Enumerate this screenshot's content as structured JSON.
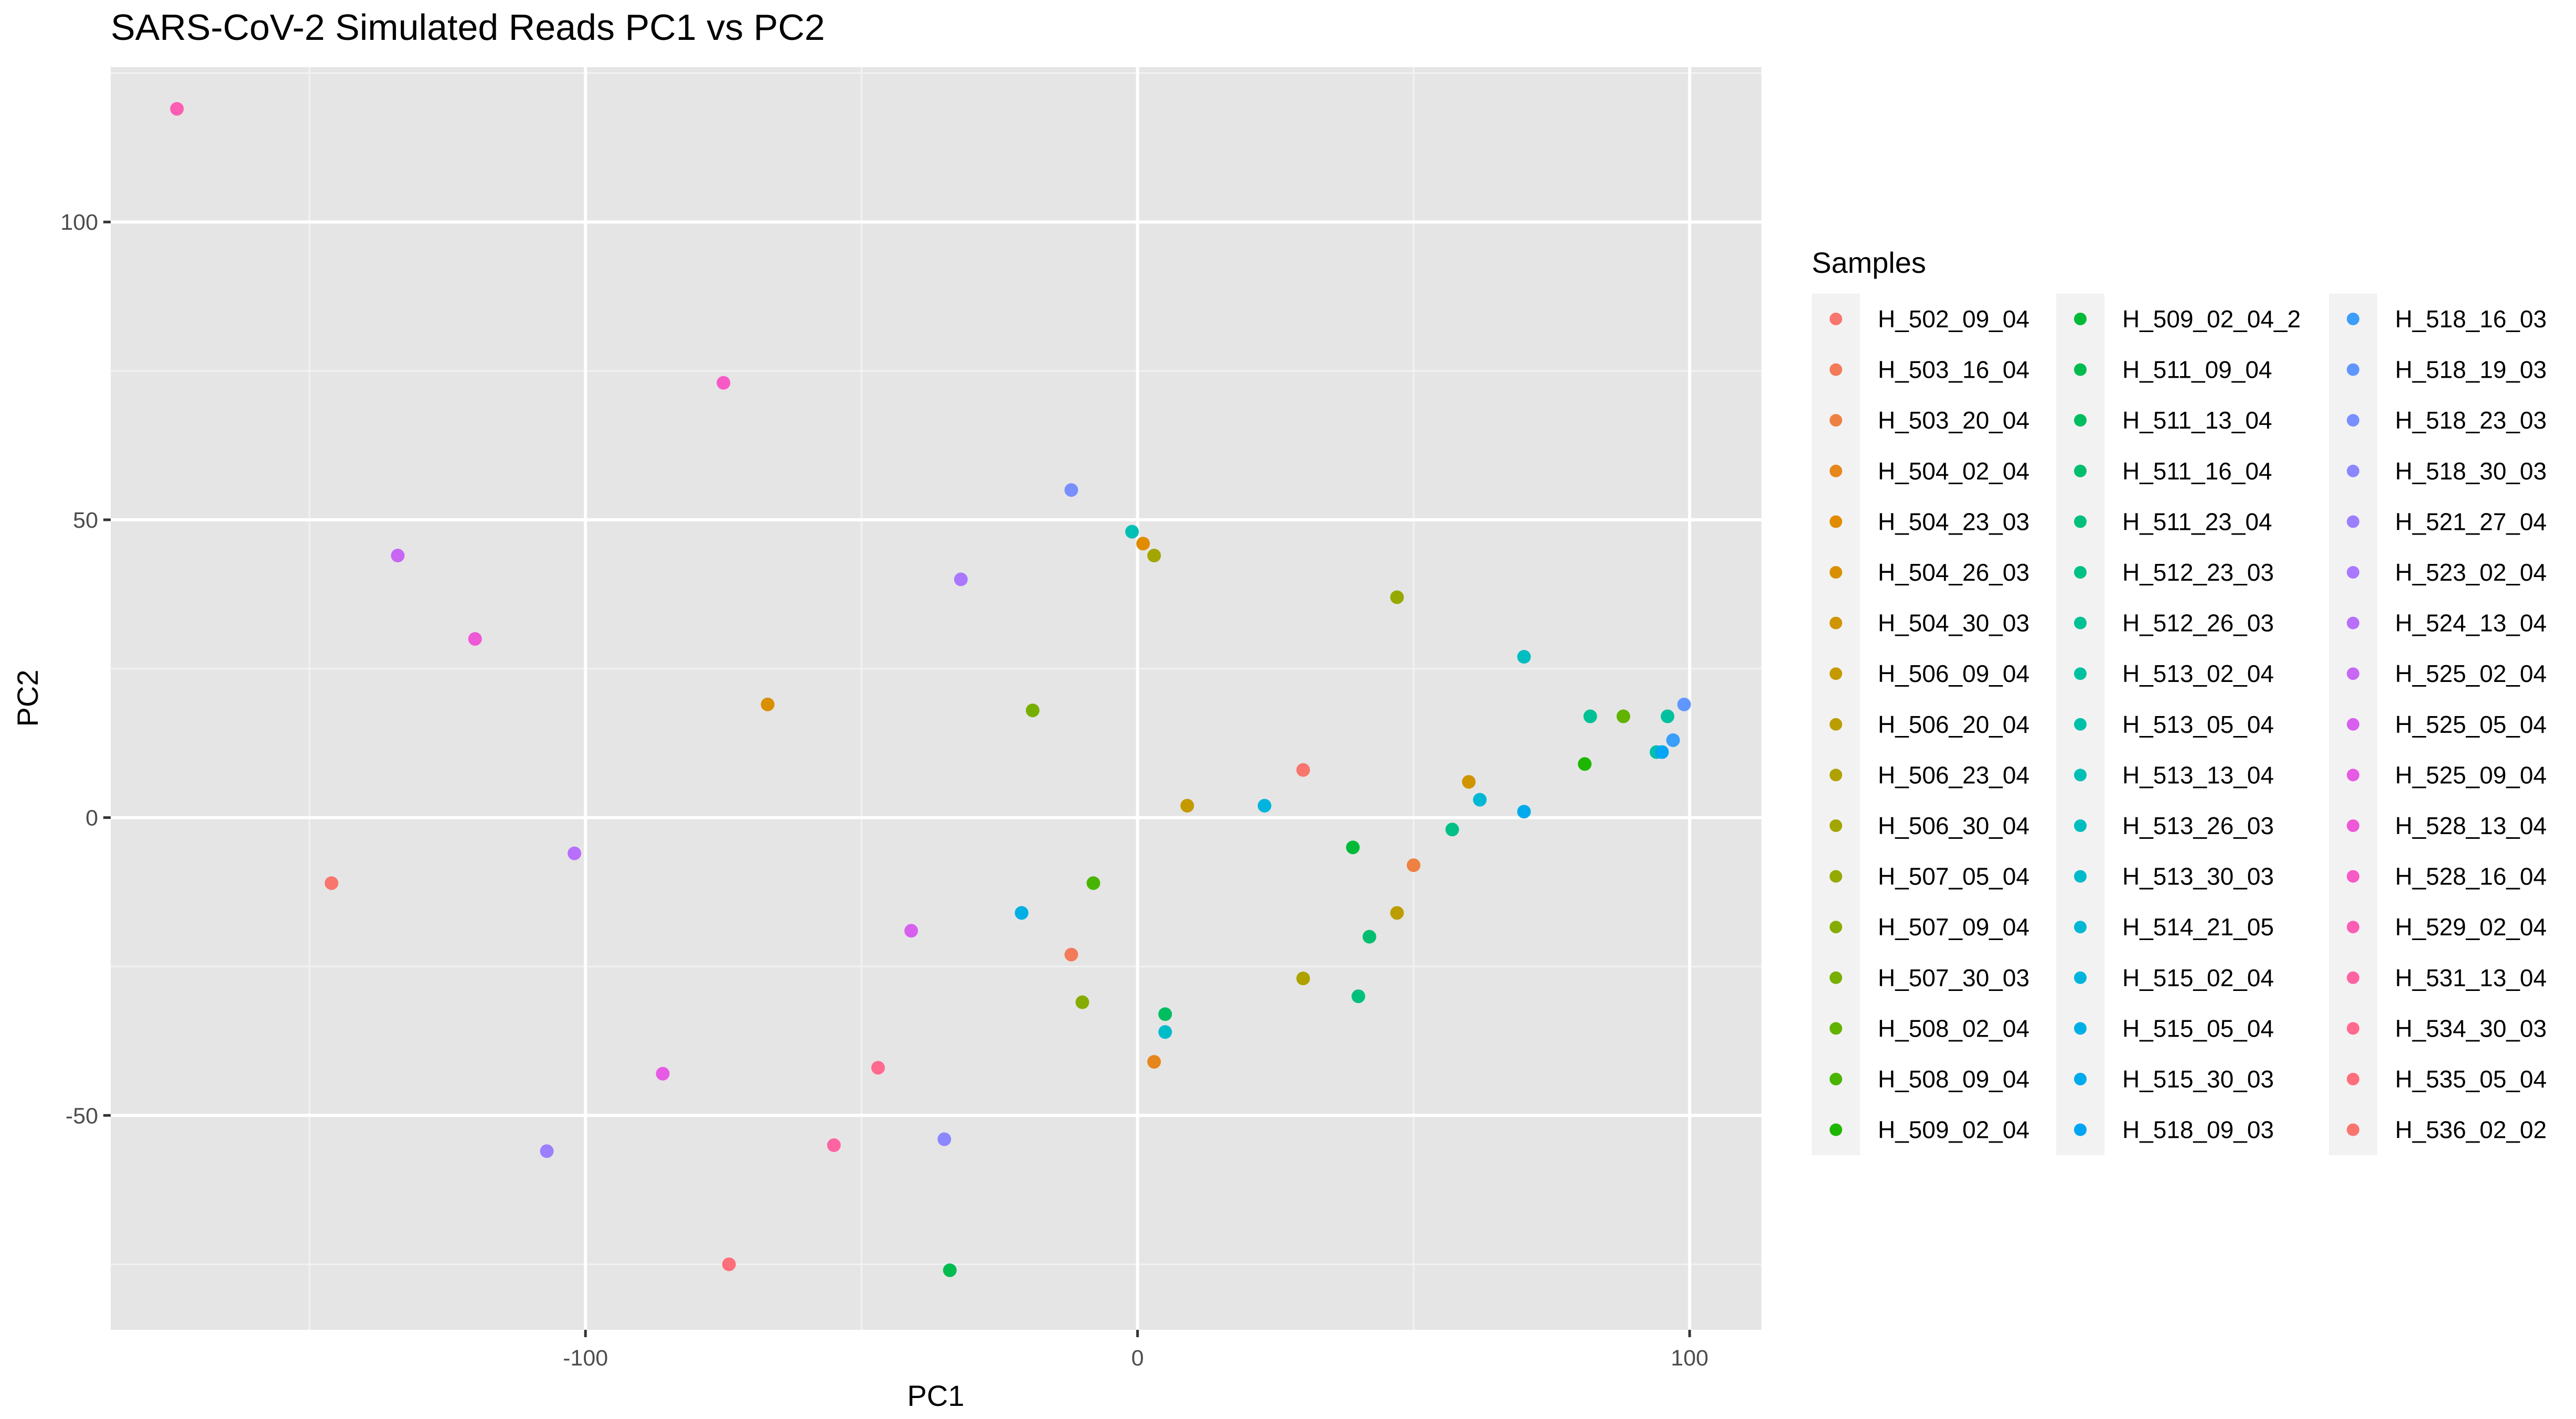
{
  "chart_data": {
    "type": "scatter",
    "title": "SARS-CoV-2 Simulated Reads PC1 vs PC2",
    "xlabel": "PC1",
    "ylabel": "PC2",
    "xlim": [
      -186,
      113
    ],
    "ylim": [
      -86,
      126
    ],
    "x_ticks": [
      -100,
      0,
      100
    ],
    "x_tick_labels": [
      "-100",
      "0",
      "100"
    ],
    "y_ticks": [
      -50,
      0,
      50,
      100
    ],
    "y_tick_labels": [
      "-50",
      "0",
      "50",
      "100"
    ],
    "grid": true,
    "legend": {
      "title": "Samples",
      "position": "right",
      "columns": 3
    },
    "series": [
      {
        "name": "H_502_09_04",
        "color": "#F8766D",
        "x": 30,
        "y": 8
      },
      {
        "name": "H_503_16_04",
        "color": "#F37B59",
        "x": -12,
        "y": -23
      },
      {
        "name": "H_503_20_04",
        "color": "#ED8141",
        "x": 50,
        "y": -8
      },
      {
        "name": "H_504_02_04",
        "color": "#E7861B",
        "x": 3,
        "y": -41
      },
      {
        "name": "H_504_23_03",
        "color": "#E08B00",
        "x": 1,
        "y": 46
      },
      {
        "name": "H_504_26_03",
        "color": "#D89000",
        "x": -67,
        "y": 19
      },
      {
        "name": "H_504_30_03",
        "color": "#CF9400",
        "x": 60,
        "y": 6
      },
      {
        "name": "H_506_09_04",
        "color": "#C59900",
        "x": 9,
        "y": 2
      },
      {
        "name": "H_506_20_04",
        "color": "#BB9D00",
        "x": 47,
        "y": -16
      },
      {
        "name": "H_506_23_04",
        "color": "#AFA100",
        "x": 30,
        "y": -27
      },
      {
        "name": "H_506_30_04",
        "color": "#A3A500",
        "x": 3,
        "y": 44
      },
      {
        "name": "H_507_05_04",
        "color": "#96A900",
        "x": 47,
        "y": 37
      },
      {
        "name": "H_507_09_04",
        "color": "#87AC00",
        "x": -10,
        "y": -31
      },
      {
        "name": "H_507_30_03",
        "color": "#76AF00",
        "x": -19,
        "y": 18
      },
      {
        "name": "H_508_02_04",
        "color": "#62B200",
        "x": 88,
        "y": 17
      },
      {
        "name": "H_508_09_04",
        "color": "#49B500",
        "x": -8,
        "y": -11
      },
      {
        "name": "H_509_02_04",
        "color": "#1DB700",
        "x": 81,
        "y": 9
      },
      {
        "name": "H_509_02_04_2",
        "color": "#00BA38",
        "x": 39,
        "y": -5
      },
      {
        "name": "H_511_09_04",
        "color": "#00BB4E",
        "x": -34,
        "y": -76
      },
      {
        "name": "H_511_13_04",
        "color": "#00BD5F",
        "x": 5,
        "y": -33
      },
      {
        "name": "H_511_16_04",
        "color": "#00BE6D",
        "x": 42,
        "y": -20
      },
      {
        "name": "H_511_23_04",
        "color": "#00C07B",
        "x": 40,
        "y": -30
      },
      {
        "name": "H_512_23_03",
        "color": "#00C087",
        "x": 57,
        "y": -2
      },
      {
        "name": "H_512_26_03",
        "color": "#00C193",
        "x": 82,
        "y": 17
      },
      {
        "name": "H_513_02_04",
        "color": "#00C19F",
        "x": 96,
        "y": 17
      },
      {
        "name": "H_513_05_04",
        "color": "#00C0AA",
        "x": 94,
        "y": 11
      },
      {
        "name": "H_513_13_04",
        "color": "#00BFB5",
        "x": -1,
        "y": 48
      },
      {
        "name": "H_513_26_03",
        "color": "#00BDC0",
        "x": 70,
        "y": 27
      },
      {
        "name": "H_513_30_03",
        "color": "#00BBCA",
        "x": 5,
        "y": -36
      },
      {
        "name": "H_514_21_05",
        "color": "#00B8D4",
        "x": 62,
        "y": 3
      },
      {
        "name": "H_515_02_04",
        "color": "#00B4DD",
        "x": 23,
        "y": 2
      },
      {
        "name": "H_515_05_04",
        "color": "#00B0E5",
        "x": -21,
        "y": -16
      },
      {
        "name": "H_515_30_03",
        "color": "#00ABED",
        "x": 70,
        "y": 1
      },
      {
        "name": "H_518_09_03",
        "color": "#00A5F4",
        "x": 95,
        "y": 11
      },
      {
        "name": "H_518_16_03",
        "color": "#3A9EFA",
        "x": 97,
        "y": 13
      },
      {
        "name": "H_518_19_03",
        "color": "#6097FE",
        "x": 99,
        "y": 19
      },
      {
        "name": "H_518_23_03",
        "color": "#798FFF",
        "x": -12,
        "y": 55
      },
      {
        "name": "H_518_30_03",
        "color": "#8C87FF",
        "x": -35,
        "y": -54
      },
      {
        "name": "H_521_27_04",
        "color": "#9C7FFF",
        "x": -107,
        "y": -56
      },
      {
        "name": "H_523_02_04",
        "color": "#AA78FF",
        "x": -32,
        "y": 40
      },
      {
        "name": "H_524_13_04",
        "color": "#B86FFA",
        "x": -102,
        "y": -6
      },
      {
        "name": "H_525_02_04",
        "color": "#C867F4",
        "x": -134,
        "y": 44
      },
      {
        "name": "H_525_05_04",
        "color": "#D860EE",
        "x": -41,
        "y": -19
      },
      {
        "name": "H_525_09_04",
        "color": "#E65AE4",
        "x": -86,
        "y": -43
      },
      {
        "name": "H_528_13_04",
        "color": "#EF58D6",
        "x": -120,
        "y": 30
      },
      {
        "name": "H_528_16_04",
        "color": "#F75AC5",
        "x": -75,
        "y": 73
      },
      {
        "name": "H_529_02_04",
        "color": "#FB5EB3",
        "x": -174,
        "y": 119
      },
      {
        "name": "H_531_13_04",
        "color": "#FE64A1",
        "x": -55,
        "y": -55
      },
      {
        "name": "H_534_30_03",
        "color": "#FF6A8E",
        "x": -47,
        "y": -42
      },
      {
        "name": "H_535_05_04",
        "color": "#FF6E7B",
        "x": -74,
        "y": -75
      },
      {
        "name": "H_536_02_02",
        "color": "#F8766D",
        "x": -146,
        "y": -11
      }
    ]
  }
}
